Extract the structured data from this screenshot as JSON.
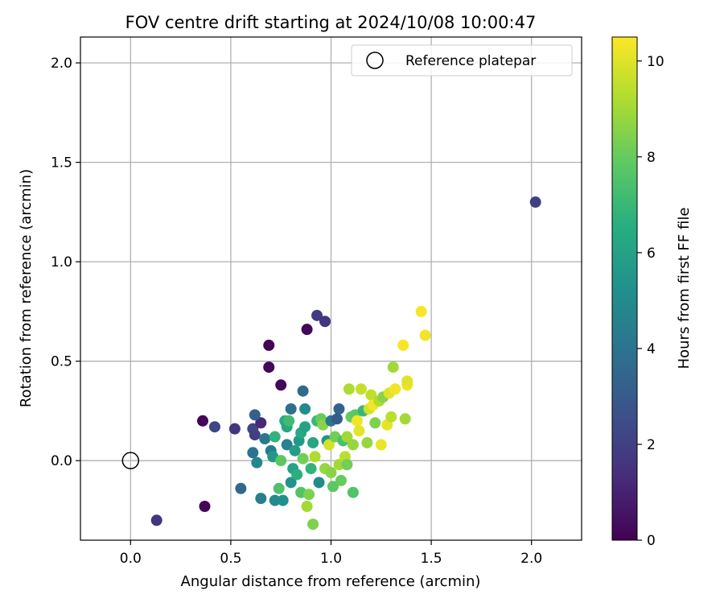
{
  "chart_data": {
    "type": "scatter",
    "title": "FOV centre drift starting at 2024/10/08 10:00:47",
    "xlabel": "Angular distance from reference (arcmin)",
    "ylabel": "Rotation from reference (arcmin)",
    "xlim": [
      -0.25,
      2.25
    ],
    "ylim": [
      -0.4,
      2.13
    ],
    "xticks": [
      0.0,
      0.5,
      1.0,
      1.5,
      2.0
    ],
    "yticks": [
      0.0,
      0.5,
      1.0,
      1.5,
      2.0
    ],
    "xtick_labels": [
      "0.0",
      "0.5",
      "1.0",
      "1.5",
      "2.0"
    ],
    "ytick_labels": [
      "0.0",
      "0.5",
      "1.0",
      "1.5",
      "2.0"
    ],
    "grid": true,
    "legend": {
      "position": "top-right",
      "entries": [
        "Reference platepar"
      ]
    },
    "reference_point": {
      "x": 0.0,
      "y": 0.0
    },
    "colorbar": {
      "label": "Hours from first FF file",
      "colormap": "viridis",
      "range": [
        0,
        10.5
      ],
      "ticks": [
        0,
        2,
        4,
        6,
        8,
        10
      ],
      "tick_labels": [
        "0",
        "2",
        "4",
        "6",
        "8",
        "10"
      ]
    },
    "points": [
      {
        "x": 0.13,
        "y": -0.3,
        "h": 1.6
      },
      {
        "x": 0.37,
        "y": -0.23,
        "h": 0.1
      },
      {
        "x": 0.36,
        "y": 0.2,
        "h": 0.1
      },
      {
        "x": 0.42,
        "y": 0.17,
        "h": 2.2
      },
      {
        "x": 0.52,
        "y": 0.16,
        "h": 1.6
      },
      {
        "x": 0.61,
        "y": 0.16,
        "h": 2.2
      },
      {
        "x": 0.62,
        "y": 0.13,
        "h": 2.0
      },
      {
        "x": 0.65,
        "y": 0.19,
        "h": 1.2
      },
      {
        "x": 0.62,
        "y": 0.23,
        "h": 3.2
      },
      {
        "x": 0.55,
        "y": -0.14,
        "h": 3.5
      },
      {
        "x": 0.61,
        "y": 0.04,
        "h": 4.0
      },
      {
        "x": 0.63,
        "y": -0.01,
        "h": 4.8
      },
      {
        "x": 0.65,
        "y": -0.19,
        "h": 4.5
      },
      {
        "x": 0.67,
        "y": 0.11,
        "h": 4.2
      },
      {
        "x": 0.69,
        "y": 0.58,
        "h": 0.1
      },
      {
        "x": 0.69,
        "y": 0.47,
        "h": 0.2
      },
      {
        "x": 0.75,
        "y": 0.38,
        "h": 0.2
      },
      {
        "x": 0.7,
        "y": 0.05,
        "h": 4.4
      },
      {
        "x": 0.71,
        "y": 0.02,
        "h": 5.5
      },
      {
        "x": 0.72,
        "y": 0.12,
        "h": 6.8
      },
      {
        "x": 0.72,
        "y": -0.2,
        "h": 5.0
      },
      {
        "x": 0.74,
        "y": -0.14,
        "h": 7.5
      },
      {
        "x": 0.75,
        "y": 0.0,
        "h": 7.8
      },
      {
        "x": 0.76,
        "y": -0.2,
        "h": 5.2
      },
      {
        "x": 0.77,
        "y": 0.2,
        "h": 6.5
      },
      {
        "x": 0.78,
        "y": 0.17,
        "h": 6.2
      },
      {
        "x": 0.78,
        "y": 0.08,
        "h": 4.6
      },
      {
        "x": 0.79,
        "y": 0.2,
        "h": 7.2
      },
      {
        "x": 0.8,
        "y": 0.26,
        "h": 3.8
      },
      {
        "x": 0.8,
        "y": -0.11,
        "h": 5.4
      },
      {
        "x": 0.81,
        "y": -0.04,
        "h": 6.0
      },
      {
        "x": 0.82,
        "y": 0.05,
        "h": 5.8
      },
      {
        "x": 0.83,
        "y": -0.07,
        "h": 6.6
      },
      {
        "x": 0.84,
        "y": 0.1,
        "h": 5.6
      },
      {
        "x": 0.85,
        "y": 0.14,
        "h": 6.4
      },
      {
        "x": 0.85,
        "y": -0.16,
        "h": 7.6
      },
      {
        "x": 0.86,
        "y": 0.01,
        "h": 8.2
      },
      {
        "x": 0.86,
        "y": 0.35,
        "h": 3.6
      },
      {
        "x": 0.87,
        "y": 0.17,
        "h": 6.0
      },
      {
        "x": 0.87,
        "y": 0.26,
        "h": 5.0
      },
      {
        "x": 0.88,
        "y": -0.23,
        "h": 9.0
      },
      {
        "x": 0.88,
        "y": 0.66,
        "h": 0.2
      },
      {
        "x": 0.89,
        "y": -0.17,
        "h": 8.4
      },
      {
        "x": 0.9,
        "y": -0.04,
        "h": 6.8
      },
      {
        "x": 0.91,
        "y": 0.09,
        "h": 6.2
      },
      {
        "x": 0.91,
        "y": -0.32,
        "h": 8.4
      },
      {
        "x": 0.92,
        "y": 0.02,
        "h": 9.2
      },
      {
        "x": 0.93,
        "y": 0.73,
        "h": 1.8
      },
      {
        "x": 0.93,
        "y": 0.2,
        "h": 7.0
      },
      {
        "x": 0.94,
        "y": -0.11,
        "h": 5.0
      },
      {
        "x": 0.95,
        "y": 0.21,
        "h": 8.0
      },
      {
        "x": 0.96,
        "y": 0.18,
        "h": 8.6
      },
      {
        "x": 0.97,
        "y": 0.7,
        "h": 1.6
      },
      {
        "x": 0.97,
        "y": -0.04,
        "h": 8.8
      },
      {
        "x": 0.98,
        "y": 0.1,
        "h": 5.4
      },
      {
        "x": 0.99,
        "y": 0.08,
        "h": 9.8
      },
      {
        "x": 1.0,
        "y": -0.06,
        "h": 8.6
      },
      {
        "x": 1.0,
        "y": 0.2,
        "h": 4.2
      },
      {
        "x": 1.01,
        "y": -0.13,
        "h": 7.8
      },
      {
        "x": 1.02,
        "y": 0.12,
        "h": 8.2
      },
      {
        "x": 1.03,
        "y": 0.21,
        "h": 3.0
      },
      {
        "x": 1.04,
        "y": 0.26,
        "h": 3.4
      },
      {
        "x": 1.04,
        "y": -0.02,
        "h": 9.0
      },
      {
        "x": 1.05,
        "y": -0.1,
        "h": 8.0
      },
      {
        "x": 1.06,
        "y": 0.1,
        "h": 7.4
      },
      {
        "x": 1.07,
        "y": 0.02,
        "h": 9.4
      },
      {
        "x": 1.08,
        "y": 0.12,
        "h": 9.0
      },
      {
        "x": 1.08,
        "y": -0.02,
        "h": 8.2
      },
      {
        "x": 1.09,
        "y": 0.36,
        "h": 9.2
      },
      {
        "x": 1.1,
        "y": 0.22,
        "h": 8.0
      },
      {
        "x": 1.11,
        "y": 0.08,
        "h": 8.8
      },
      {
        "x": 1.11,
        "y": -0.16,
        "h": 7.6
      },
      {
        "x": 1.12,
        "y": 0.23,
        "h": 7.8
      },
      {
        "x": 1.13,
        "y": 0.2,
        "h": 10.3
      },
      {
        "x": 1.14,
        "y": 0.15,
        "h": 10.1
      },
      {
        "x": 1.15,
        "y": 0.36,
        "h": 9.6
      },
      {
        "x": 1.16,
        "y": 0.25,
        "h": 7.0
      },
      {
        "x": 1.18,
        "y": 0.09,
        "h": 8.8
      },
      {
        "x": 1.19,
        "y": 0.26,
        "h": 9.8
      },
      {
        "x": 1.2,
        "y": 0.33,
        "h": 9.5
      },
      {
        "x": 1.21,
        "y": 0.28,
        "h": 10.3
      },
      {
        "x": 1.22,
        "y": 0.19,
        "h": 8.4
      },
      {
        "x": 1.24,
        "y": 0.3,
        "h": 9.2
      },
      {
        "x": 1.25,
        "y": 0.08,
        "h": 10.2
      },
      {
        "x": 1.26,
        "y": 0.32,
        "h": 8.6
      },
      {
        "x": 1.28,
        "y": 0.18,
        "h": 10.1
      },
      {
        "x": 1.29,
        "y": 0.34,
        "h": 10.0
      },
      {
        "x": 1.3,
        "y": 0.22,
        "h": 9.4
      },
      {
        "x": 1.31,
        "y": 0.47,
        "h": 9.0
      },
      {
        "x": 1.32,
        "y": 0.36,
        "h": 10.3
      },
      {
        "x": 1.36,
        "y": 0.58,
        "h": 10.4
      },
      {
        "x": 1.37,
        "y": 0.21,
        "h": 9.0
      },
      {
        "x": 1.38,
        "y": 0.38,
        "h": 10.2
      },
      {
        "x": 1.38,
        "y": 0.4,
        "h": 10.0
      },
      {
        "x": 1.45,
        "y": 0.75,
        "h": 10.4
      },
      {
        "x": 1.47,
        "y": 0.63,
        "h": 10.3
      },
      {
        "x": 2.02,
        "y": 1.3,
        "h": 2.0
      }
    ]
  }
}
